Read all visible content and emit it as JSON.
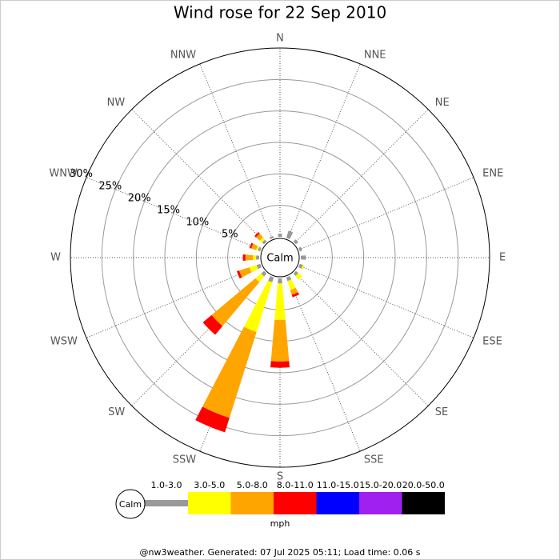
{
  "chart_data": {
    "type": "windrose",
    "title": "Wind rose for 22 Sep 2010",
    "categories": [
      "N",
      "NNE",
      "NE",
      "ENE",
      "E",
      "ESE",
      "SE",
      "SSE",
      "S",
      "SSW",
      "SW",
      "WSW",
      "W",
      "WNW",
      "NW",
      "NNW"
    ],
    "calm_label": "Calm",
    "ylim": [
      0,
      30
    ],
    "yticks": [
      {
        "value": 5,
        "label": "5%"
      },
      {
        "value": 10,
        "label": "10%"
      },
      {
        "value": 15,
        "label": "15%"
      },
      {
        "value": 20,
        "label": "20%"
      },
      {
        "value": 25,
        "label": "25%"
      },
      {
        "value": 30,
        "label": "30%"
      }
    ],
    "series": [
      {
        "name": "1.0-3.0",
        "color": "#999999",
        "values": [
          0.5,
          1.2,
          0.5,
          0.4,
          0.8,
          0.5,
          0.5,
          0.6,
          0.8,
          0.8,
          0.6,
          0.6,
          0.5,
          0.4,
          0.4,
          0.3
        ]
      },
      {
        "name": "3.0-5.0",
        "color": "#ffff00",
        "values": [
          0,
          0,
          0,
          0,
          0,
          0.3,
          0.8,
          1.5,
          5.8,
          8.3,
          1.2,
          1.2,
          0.5,
          0.3,
          0.5,
          0
        ]
      },
      {
        "name": "5.0-8.0",
        "color": "#ffa500",
        "values": [
          0,
          0,
          0,
          0,
          0,
          0,
          0,
          0.8,
          6.6,
          14.3,
          9.1,
          1.7,
          1.2,
          0.8,
          0.8,
          0
        ]
      },
      {
        "name": "8.0-11.0",
        "color": "#ff0000",
        "values": [
          0,
          0,
          0,
          0,
          0,
          0,
          0,
          0.4,
          1.0,
          2.4,
          1.8,
          0.4,
          0.4,
          0.3,
          0.3,
          0
        ]
      },
      {
        "name": "11.0-15.0",
        "color": "#0000ff",
        "values": [
          0,
          0,
          0,
          0,
          0,
          0,
          0,
          0,
          0,
          0,
          0,
          0,
          0,
          0,
          0,
          0
        ]
      },
      {
        "name": "15.0-20.0",
        "color": "#a020f0",
        "values": [
          0,
          0,
          0,
          0,
          0,
          0,
          0,
          0,
          0,
          0,
          0,
          0,
          0,
          0,
          0,
          0
        ]
      },
      {
        "name": "20.0-50.0",
        "color": "#000000",
        "values": [
          0,
          0,
          0,
          0,
          0,
          0,
          0,
          0,
          0,
          0,
          0,
          0,
          0,
          0,
          0,
          0
        ]
      }
    ],
    "legend_unit": "mph",
    "footer": "@nw3weather. Generated: 07 Jul 2025 05:11; Load time: 0.06 s"
  }
}
